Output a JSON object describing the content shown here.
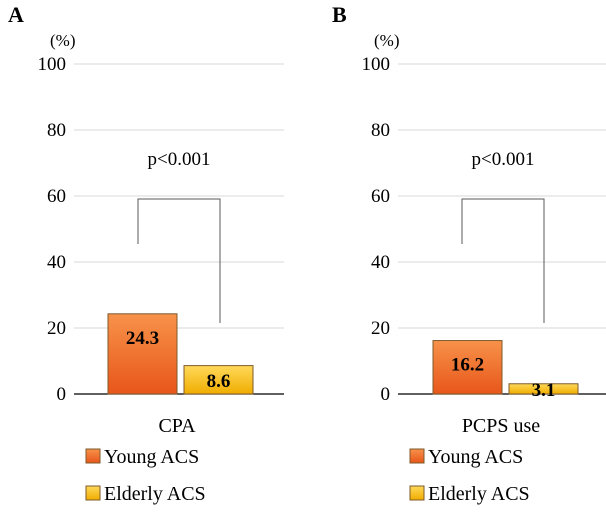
{
  "legend": {
    "young": "Young ACS",
    "elderly": "Elderly ACS"
  },
  "colors": {
    "young_top": "#f7924a",
    "young_bottom": "#e8561a",
    "elderly_top": "#ffd95a",
    "elderly_bottom": "#f0ad00",
    "bar_stroke": "#7f5a2a"
  },
  "chart_data": [
    {
      "type": "bar",
      "panel": "A",
      "unit": "(%)",
      "categories": [
        "CPA"
      ],
      "series": [
        {
          "name": "Young ACS",
          "values": [
            24.3
          ],
          "labels": [
            "24.3"
          ]
        },
        {
          "name": "Elderly ACS",
          "values": [
            8.6
          ],
          "labels": [
            "8.6"
          ]
        }
      ],
      "ylim": [
        0,
        100
      ],
      "yticks": [
        0,
        20,
        40,
        60,
        80,
        100
      ],
      "yticklabels": [
        "0",
        "20",
        "40",
        "60",
        "80",
        "100"
      ],
      "annotation": "p<0.001",
      "grid": true,
      "legend_position": "bottom"
    },
    {
      "type": "bar",
      "panel": "B",
      "unit": "(%)",
      "categories": [
        "PCPS use"
      ],
      "series": [
        {
          "name": "Young ACS",
          "values": [
            16.2
          ],
          "labels": [
            "16.2"
          ]
        },
        {
          "name": "Elderly ACS",
          "values": [
            3.1
          ],
          "labels": [
            "3.1"
          ]
        }
      ],
      "ylim": [
        0,
        100
      ],
      "yticks": [
        0,
        20,
        40,
        60,
        80,
        100
      ],
      "yticklabels": [
        "0",
        "20",
        "40",
        "60",
        "80",
        "100"
      ],
      "annotation": "p<0.001",
      "grid": true,
      "legend_position": "bottom"
    }
  ]
}
